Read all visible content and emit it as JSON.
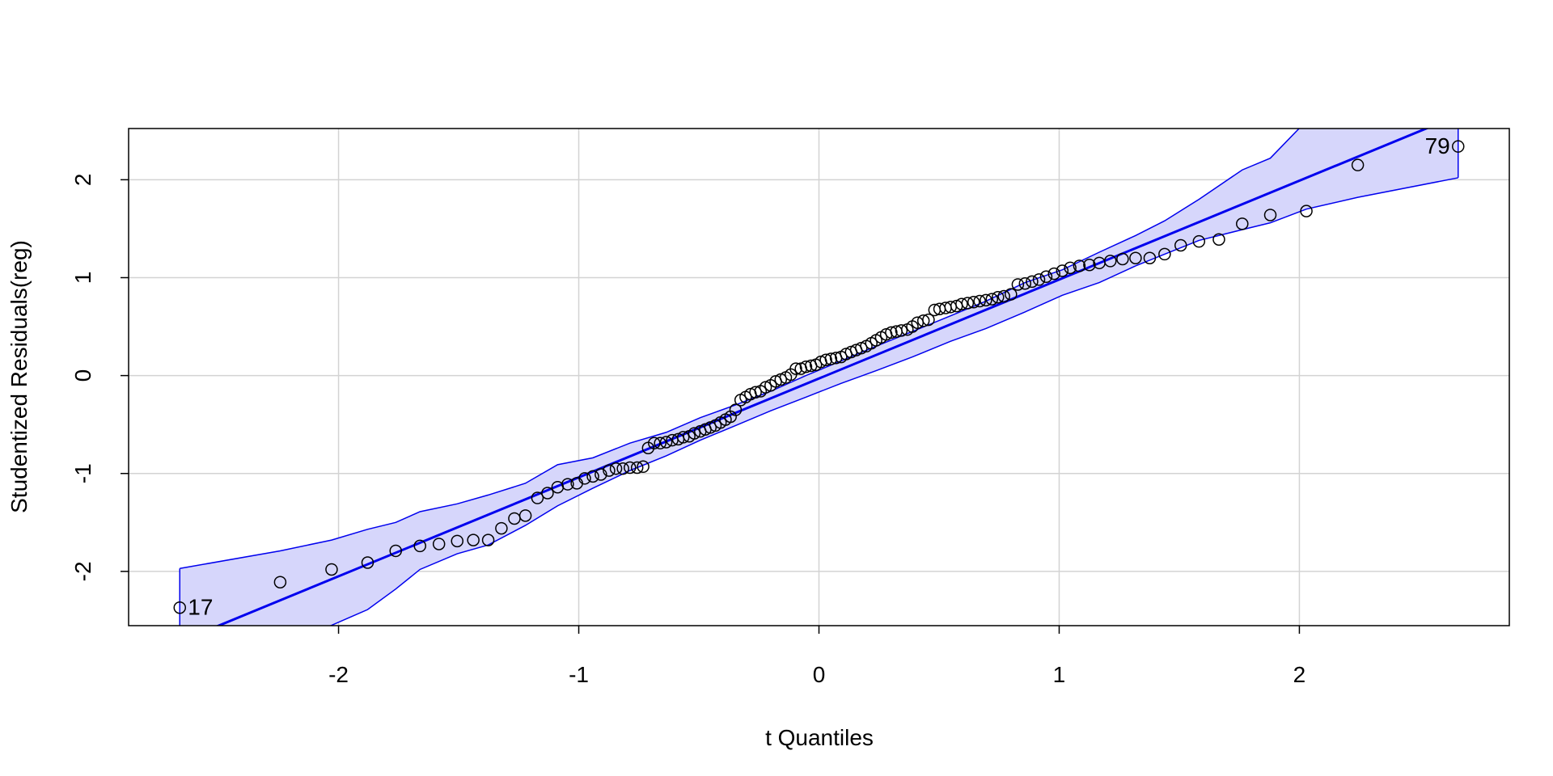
{
  "chart_data": {
    "type": "qqplot",
    "x_label": "t Quantiles",
    "y_label": "Studentized Residuals(reg)",
    "xlim": [
      -2.874,
      2.874
    ],
    "ylim": [
      -2.554,
      2.523
    ],
    "xticks": [
      -2,
      -1,
      0,
      1,
      2
    ],
    "yticks": [
      -2,
      -1,
      0,
      1,
      2
    ],
    "grid": true,
    "point_color": "#000000",
    "line_color": "#0000ee",
    "band_color": "#d6d6fb",
    "annotations": [
      "17",
      "79"
    ],
    "line": {
      "intercept": -0.03,
      "slope": 1.01
    },
    "x": [
      -2.661,
      -2.243,
      -2.029,
      -1.879,
      -1.762,
      -1.661,
      -1.582,
      -1.506,
      -1.439,
      -1.377,
      -1.322,
      -1.268,
      -1.222,
      -1.172,
      -1.13,
      -1.088,
      -1.046,
      -1.008,
      -0.975,
      -0.941,
      -0.908,
      -0.874,
      -0.845,
      -0.816,
      -0.787,
      -0.757,
      -0.732,
      -0.711,
      -0.686,
      -0.661,
      -0.636,
      -0.611,
      -0.586,
      -0.565,
      -0.54,
      -0.519,
      -0.494,
      -0.473,
      -0.452,
      -0.431,
      -0.41,
      -0.389,
      -0.368,
      -0.347,
      -0.326,
      -0.305,
      -0.285,
      -0.264,
      -0.243,
      -0.222,
      -0.201,
      -0.18,
      -0.159,
      -0.138,
      -0.117,
      -0.096,
      -0.075,
      -0.054,
      -0.033,
      -0.013,
      0.008,
      0.029,
      0.05,
      0.071,
      0.092,
      0.113,
      0.134,
      0.155,
      0.176,
      0.197,
      0.218,
      0.238,
      0.259,
      0.28,
      0.301,
      0.322,
      0.343,
      0.368,
      0.389,
      0.41,
      0.435,
      0.456,
      0.481,
      0.502,
      0.527,
      0.548,
      0.573,
      0.594,
      0.619,
      0.644,
      0.669,
      0.695,
      0.72,
      0.745,
      0.77,
      0.799,
      0.828,
      0.858,
      0.887,
      0.916,
      0.946,
      0.979,
      1.013,
      1.046,
      1.084,
      1.126,
      1.167,
      1.213,
      1.264,
      1.318,
      1.377,
      1.439,
      1.506,
      1.582,
      1.665,
      1.762,
      1.879,
      2.029,
      2.243,
      2.661
    ],
    "values": [
      -2.37,
      -2.11,
      -1.98,
      -1.91,
      -1.79,
      -1.74,
      -1.72,
      -1.69,
      -1.68,
      -1.68,
      -1.56,
      -1.46,
      -1.43,
      -1.25,
      -1.2,
      -1.14,
      -1.11,
      -1.1,
      -1.05,
      -1.03,
      -1.01,
      -0.97,
      -0.95,
      -0.95,
      -0.94,
      -0.94,
      -0.93,
      -0.74,
      -0.69,
      -0.69,
      -0.68,
      -0.66,
      -0.65,
      -0.63,
      -0.62,
      -0.59,
      -0.57,
      -0.55,
      -0.53,
      -0.51,
      -0.48,
      -0.45,
      -0.42,
      -0.35,
      -0.25,
      -0.22,
      -0.19,
      -0.17,
      -0.16,
      -0.12,
      -0.1,
      -0.06,
      -0.04,
      -0.02,
      0.01,
      0.07,
      0.07,
      0.09,
      0.1,
      0.11,
      0.14,
      0.16,
      0.17,
      0.18,
      0.19,
      0.22,
      0.24,
      0.26,
      0.28,
      0.3,
      0.33,
      0.36,
      0.39,
      0.42,
      0.44,
      0.45,
      0.46,
      0.47,
      0.5,
      0.54,
      0.56,
      0.57,
      0.67,
      0.68,
      0.69,
      0.7,
      0.71,
      0.73,
      0.74,
      0.75,
      0.76,
      0.77,
      0.78,
      0.8,
      0.81,
      0.83,
      0.93,
      0.94,
      0.96,
      0.98,
      1.01,
      1.04,
      1.07,
      1.1,
      1.12,
      1.13,
      1.15,
      1.17,
      1.19,
      1.2,
      1.2,
      1.24,
      1.33,
      1.37,
      1.39,
      1.55,
      1.64,
      1.68,
      2.15,
      2.34
    ],
    "envelope": {
      "x": [
        -2.661,
        -2.243,
        -2.029,
        -1.879,
        -1.762,
        -1.661,
        -1.506,
        -1.377,
        -1.222,
        -1.088,
        -0.941,
        -0.787,
        -0.636,
        -0.494,
        -0.347,
        -0.201,
        -0.054,
        0.092,
        0.238,
        0.389,
        0.548,
        0.695,
        0.858,
        1.013,
        1.167,
        1.318,
        1.439,
        1.582,
        1.762,
        1.879,
        2.029,
        2.243,
        2.661
      ],
      "upper": [
        -1.97,
        -1.79,
        -1.68,
        -1.57,
        -1.5,
        -1.39,
        -1.31,
        -1.22,
        -1.1,
        -0.91,
        -0.84,
        -0.69,
        -0.58,
        -0.43,
        -0.3,
        -0.16,
        0.0,
        0.15,
        0.3,
        0.45,
        0.61,
        0.76,
        0.95,
        1.08,
        1.26,
        1.43,
        1.58,
        1.8,
        2.1,
        2.22,
        2.6,
        3.3,
        4.0
      ],
      "lower": [
        -3.0,
        -2.8,
        -2.55,
        -2.39,
        -2.18,
        -1.98,
        -1.82,
        -1.73,
        -1.53,
        -1.33,
        -1.15,
        -0.97,
        -0.82,
        -0.66,
        -0.51,
        -0.36,
        -0.22,
        -0.08,
        0.05,
        0.19,
        0.35,
        0.48,
        0.65,
        0.82,
        0.95,
        1.12,
        1.24,
        1.38,
        1.49,
        1.56,
        1.7,
        1.82,
        2.02
      ]
    }
  }
}
